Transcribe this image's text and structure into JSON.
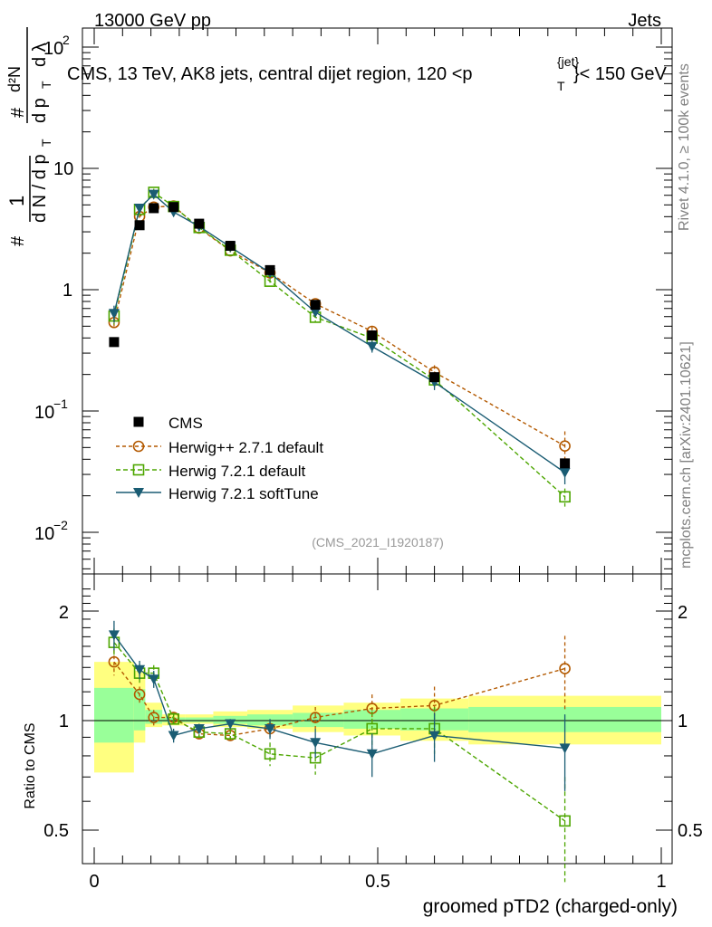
{
  "header": {
    "left": "13000 GeV pp",
    "right": "Jets"
  },
  "title_parts": {
    "main": "CMS, 13 TeV, AK8 jets, central dijet region, 120 <p",
    "sub": "T",
    "sup": "{jet}",
    "end": "}< 150 GeV"
  },
  "side_labels": {
    "rivet": "Rivet 4.1.0, ≥ 100k events",
    "mcplots": "mcplots.cern.ch [arXiv:2401.10621]"
  },
  "analysis_tag": "(CMS_2021_I1920187)",
  "ylabel_upper": {
    "hash": "#",
    "one": "1",
    "dN": "d N / d p",
    "T": "T",
    "num": "d²N",
    "den1": "d p",
    "den2": "d λ"
  },
  "ylabel_lower": "Ratio to CMS",
  "xlabel": "groomed pTD2 (charged-only)",
  "upper_ticks": {
    "t100": "10",
    "t100exp": "2",
    "t10": "10",
    "t1": "1",
    "t01": "10",
    "t01exp": "−1",
    "t001": "10",
    "t001exp": "−2"
  },
  "lower_ticks": {
    "t2": "2",
    "t1": "1",
    "t05": "0.5",
    "t2r": "2",
    "t1r": "1",
    "t05r": "0.5"
  },
  "x_ticks": {
    "t0": "0",
    "t05": "0.5",
    "t1": "1"
  },
  "legend": {
    "cms": "CMS",
    "herwigpp": "Herwig++ 2.7.1 default",
    "herwig721": "Herwig 7.2.1 default",
    "herwigsoft": "Herwig 7.2.1 softTune"
  },
  "colors": {
    "cms": "#000000",
    "herwigpp": "#b35900",
    "herwig721": "#4da600",
    "herwigsoft": "#1a5c73",
    "band_yellow": "#ffff80",
    "band_green": "#99ff99"
  },
  "chart_data": {
    "type": "line",
    "x": [
      0.035,
      0.08,
      0.105,
      0.14,
      0.185,
      0.24,
      0.31,
      0.39,
      0.49,
      0.6,
      0.83
    ],
    "xlim": [
      0,
      1
    ],
    "ylim_upper": [
      0.005,
      150
    ],
    "yscale_upper": "log",
    "ylim_lower": [
      0.4,
      2.4
    ],
    "yscale_lower": "log",
    "cms": {
      "name": "CMS",
      "values": [
        0.37,
        3.4,
        4.7,
        4.8,
        3.5,
        2.3,
        1.45,
        0.75,
        0.42,
        0.19,
        0.037
      ]
    },
    "series": [
      {
        "name": "Herwig++ 2.7.1 default",
        "key": "herwigpp",
        "marker": "circle",
        "ratio": [
          1.45,
          1.18,
          1.02,
          1.02,
          0.92,
          0.91,
          0.95,
          1.02,
          1.08,
          1.1,
          1.39
        ],
        "ratio_err": [
          0.12,
          0.06,
          0.05,
          0.03,
          0.03,
          0.03,
          0.05,
          0.07,
          0.1,
          0.14,
          0.32
        ]
      },
      {
        "name": "Herwig 7.2.1 default",
        "key": "herwig721",
        "marker": "square",
        "ratio": [
          1.64,
          1.35,
          1.35,
          1.01,
          0.93,
          0.92,
          0.81,
          0.79,
          0.95,
          0.95,
          0.53
        ],
        "ratio_err": [
          0.15,
          0.08,
          0.07,
          0.04,
          0.03,
          0.03,
          0.06,
          0.08,
          0.11,
          0.14,
          0.17
        ]
      },
      {
        "name": "Herwig 7.2.1 softTune",
        "key": "herwigsoft",
        "marker": "triangle",
        "ratio": [
          1.72,
          1.38,
          1.3,
          0.91,
          0.95,
          0.98,
          0.95,
          0.87,
          0.81,
          0.91,
          0.84
        ],
        "ratio_err": [
          0.16,
          0.08,
          0.07,
          0.04,
          0.03,
          0.03,
          0.06,
          0.08,
          0.11,
          0.14,
          0.2
        ]
      }
    ],
    "bands": {
      "edges": [
        0,
        0.07,
        0.09,
        0.12,
        0.16,
        0.21,
        0.27,
        0.35,
        0.44,
        0.54,
        0.66,
        1.0
      ],
      "yellow": [
        [
          0.72,
          1.45
        ],
        [
          0.87,
          1.37
        ],
        [
          0.96,
          1.12
        ],
        [
          0.97,
          1.04
        ],
        [
          0.98,
          1.04
        ],
        [
          0.96,
          1.06
        ],
        [
          0.95,
          1.07
        ],
        [
          0.93,
          1.1
        ],
        [
          0.91,
          1.12
        ],
        [
          0.88,
          1.15
        ],
        [
          0.86,
          1.17
        ]
      ],
      "green": [
        [
          0.87,
          1.23
        ],
        [
          0.94,
          1.22
        ],
        [
          0.98,
          1.07
        ],
        [
          0.99,
          1.02
        ],
        [
          0.99,
          1.02
        ],
        [
          0.98,
          1.03
        ],
        [
          0.97,
          1.04
        ],
        [
          0.96,
          1.05
        ],
        [
          0.95,
          1.07
        ],
        [
          0.94,
          1.08
        ],
        [
          0.93,
          1.09
        ]
      ]
    }
  }
}
